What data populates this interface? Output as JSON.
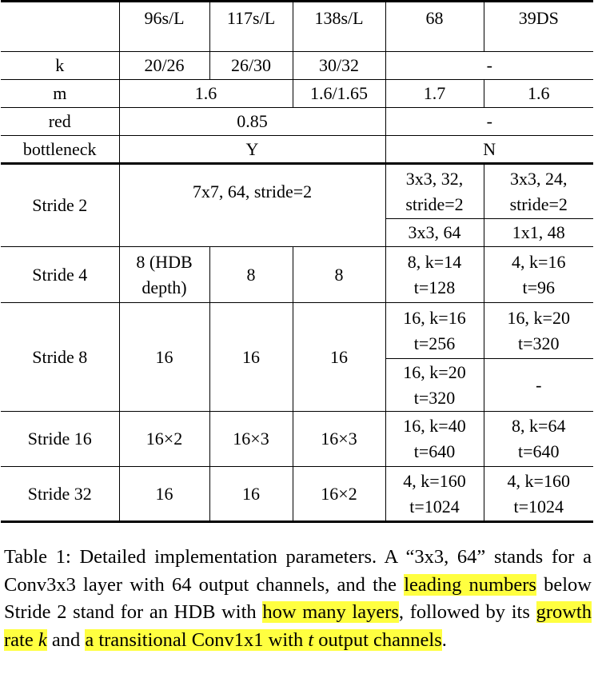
{
  "table": {
    "headers": [
      "",
      "96s/L",
      "117s/L",
      "138s/L",
      "68",
      "39DS"
    ],
    "rows": {
      "k": {
        "label": "k",
        "c1": "20/26",
        "c2": "26/30",
        "c3": "30/32",
        "c45": "-"
      },
      "m": {
        "label": "m",
        "c12": "1.6",
        "c3": "1.6/1.65",
        "c4": "1.7",
        "c5": "1.6"
      },
      "red": {
        "label": "red",
        "c123": "0.85",
        "c45": "-"
      },
      "bottleneck": {
        "label": "bottleneck",
        "c123": "Y",
        "c45": "N"
      },
      "stride2": {
        "label": "Stride 2",
        "c123": "7x7, 64, stride=2",
        "c4a_l1": "3x3, 32,",
        "c4a_l2": "stride=2",
        "c5a_l1": "3x3, 24,",
        "c5a_l2": "stride=2",
        "c4b": "3x3, 64",
        "c5b": "1x1, 48"
      },
      "stride4": {
        "label": "Stride 4",
        "c1_l1": "8 (HDB",
        "c1_l2": "depth)",
        "c2": "8",
        "c3": "8",
        "c4_l1": "8, k=14",
        "c4_l2": "t=128",
        "c5_l1": "4, k=16",
        "c5_l2": "t=96"
      },
      "stride8": {
        "label": "Stride 8",
        "c1": "16",
        "c2": "16",
        "c3": "16",
        "c4a_l1": "16, k=16",
        "c4a_l2": "t=256",
        "c5a_l1": "16, k=20",
        "c5a_l2": "t=320",
        "c4b_l1": "16, k=20",
        "c4b_l2": "t=320",
        "c5b": "-"
      },
      "stride16": {
        "label": "Stride 16",
        "c1": "16×2",
        "c2": "16×3",
        "c3": "16×3",
        "c4_l1": "16, k=40",
        "c4_l2": "t=640",
        "c5_l1": "8, k=64",
        "c5_l2": "t=640"
      },
      "stride32": {
        "label": "Stride 32",
        "c1": "16",
        "c2": "16",
        "c3": "16×2",
        "c4_l1": "4, k=160",
        "c4_l2": "t=1024",
        "c5_l1": "4, k=160",
        "c5_l2": "t=1024"
      }
    }
  },
  "caption": {
    "p1": "Table 1: Detailed implementation parameters. A “3x3, 64” stands for a Conv3x3 layer with 64 output channels, and the ",
    "h1": "leading numbers",
    "p2": " below Stride 2 stand for an HDB with ",
    "h2": "how many layers",
    "p3": ", followed by its ",
    "h3a": "growth rate ",
    "h3b": "k",
    "p4": " and ",
    "h4a": "a transitional Conv1x1 with ",
    "h4b": "t",
    "h4c": " output channels",
    "p5": "."
  },
  "colors": {
    "highlight": "#ffff40"
  }
}
